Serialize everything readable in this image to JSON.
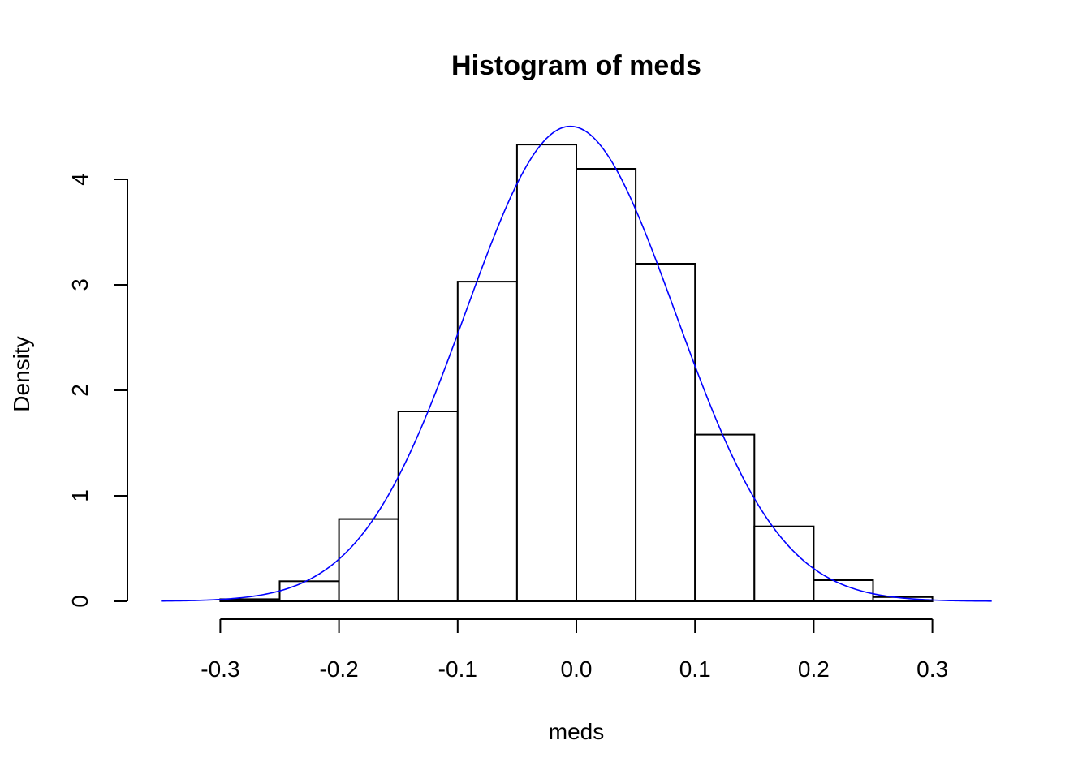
{
  "chart_data": {
    "type": "bar",
    "title": "Histogram of meds",
    "xlabel": "meds",
    "ylabel": "Density",
    "xlim": [
      -0.35,
      0.35
    ],
    "ylim": [
      0,
      4.5
    ],
    "x_ticks": [
      -0.3,
      -0.2,
      -0.1,
      0.0,
      0.1,
      0.2,
      0.3
    ],
    "x_tick_labels": [
      "-0.3",
      "-0.2",
      "-0.1",
      "0.0",
      "0.1",
      "0.2",
      "0.3"
    ],
    "y_ticks": [
      0,
      1,
      2,
      3,
      4
    ],
    "y_tick_labels": [
      "0",
      "1",
      "2",
      "3",
      "4"
    ],
    "bins": [
      {
        "x0": -0.3,
        "x1": -0.25,
        "density": 0.02
      },
      {
        "x0": -0.25,
        "x1": -0.2,
        "density": 0.19
      },
      {
        "x0": -0.2,
        "x1": -0.15,
        "density": 0.78
      },
      {
        "x0": -0.15,
        "x1": -0.1,
        "density": 1.8
      },
      {
        "x0": -0.1,
        "x1": -0.05,
        "density": 3.03
      },
      {
        "x0": -0.05,
        "x1": 0.0,
        "density": 4.33
      },
      {
        "x0": 0.0,
        "x1": 0.05,
        "density": 4.1
      },
      {
        "x0": 0.05,
        "x1": 0.1,
        "density": 3.2
      },
      {
        "x0": 0.1,
        "x1": 0.15,
        "density": 1.58
      },
      {
        "x0": 0.15,
        "x1": 0.2,
        "density": 0.71
      },
      {
        "x0": 0.2,
        "x1": 0.25,
        "density": 0.2
      },
      {
        "x0": 0.25,
        "x1": 0.3,
        "density": 0.04
      }
    ],
    "density_curve": {
      "type": "normal",
      "mean": -0.005,
      "sd": 0.0886,
      "x_range": [
        -0.35,
        0.35
      ],
      "color": "#0000ff"
    },
    "bar_fill": "#ffffff",
    "bar_stroke": "#000000",
    "grid": false
  }
}
